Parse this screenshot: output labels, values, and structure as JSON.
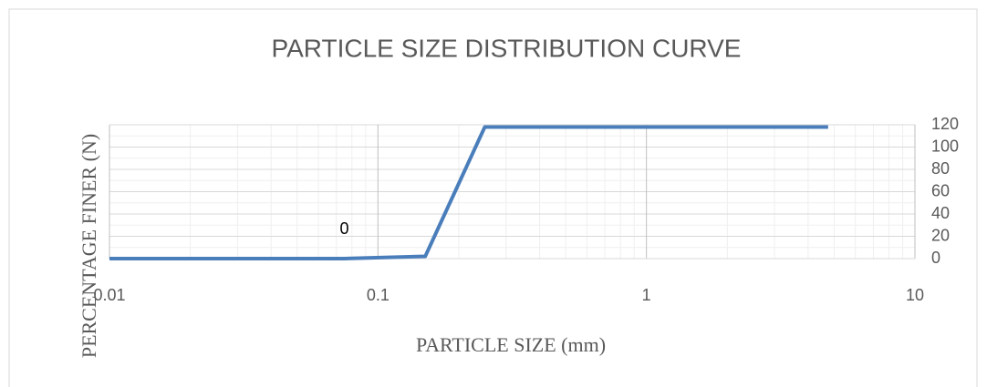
{
  "chart_data": {
    "type": "line",
    "title": "PARTICLE SIZE DISTRIBUTION CURVE",
    "x_label": "PARTICLE SIZE (mm)",
    "y_label": "PERCENTAGE FINER (N)",
    "x": [
      0.01,
      0.075,
      0.15,
      0.25,
      4.75
    ],
    "series": [
      {
        "name": "Percentage finer",
        "color": "#4a7ebb",
        "values": [
          0,
          0,
          2,
          118,
          118
        ]
      }
    ],
    "annotations": [
      {
        "text": "0",
        "x": 0.075,
        "y": 0
      }
    ],
    "xlim": [
      0.01,
      10
    ],
    "xticks": [
      0.01,
      0.1,
      1,
      10
    ],
    "x_log": true,
    "ylim": [
      0,
      120
    ],
    "yticks": [
      0,
      20,
      40,
      60,
      80,
      100,
      120
    ],
    "y_axis_side": "right",
    "grid": true,
    "minor_grid": true
  }
}
